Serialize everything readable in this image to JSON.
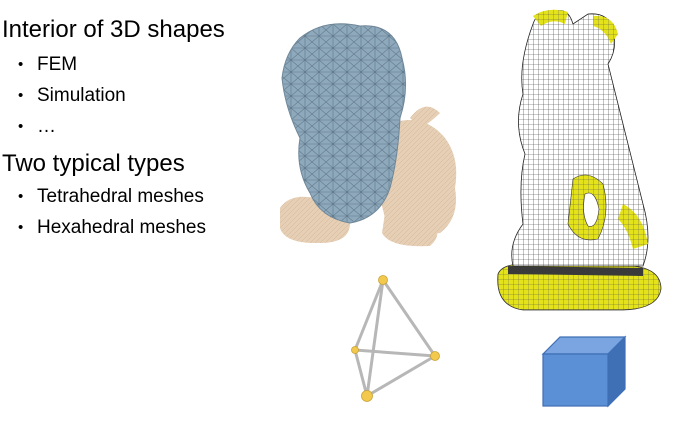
{
  "slide": {
    "heading1": "Interior of 3D shapes",
    "bullets1": [
      "FEM",
      "Simulation",
      "…"
    ],
    "heading2": "Two typical types",
    "bullets2": [
      "Tetrahedral meshes",
      "Hexahedral meshes"
    ]
  },
  "figures": {
    "lion_tet_mesh": {
      "mesh_color": "#8fa9bc",
      "surface_color": "#e4cdb3"
    },
    "tetrahedron": {
      "edge_color": "#b7b7b7",
      "vertex_color": "#f2c94c"
    },
    "statue_hex_mesh": {
      "mesh_color": "#ffffff",
      "accent_color": "#e4e21a"
    },
    "cube": {
      "face_color": "#5b8fd6",
      "edge_color": "#3f6fb5"
    }
  }
}
